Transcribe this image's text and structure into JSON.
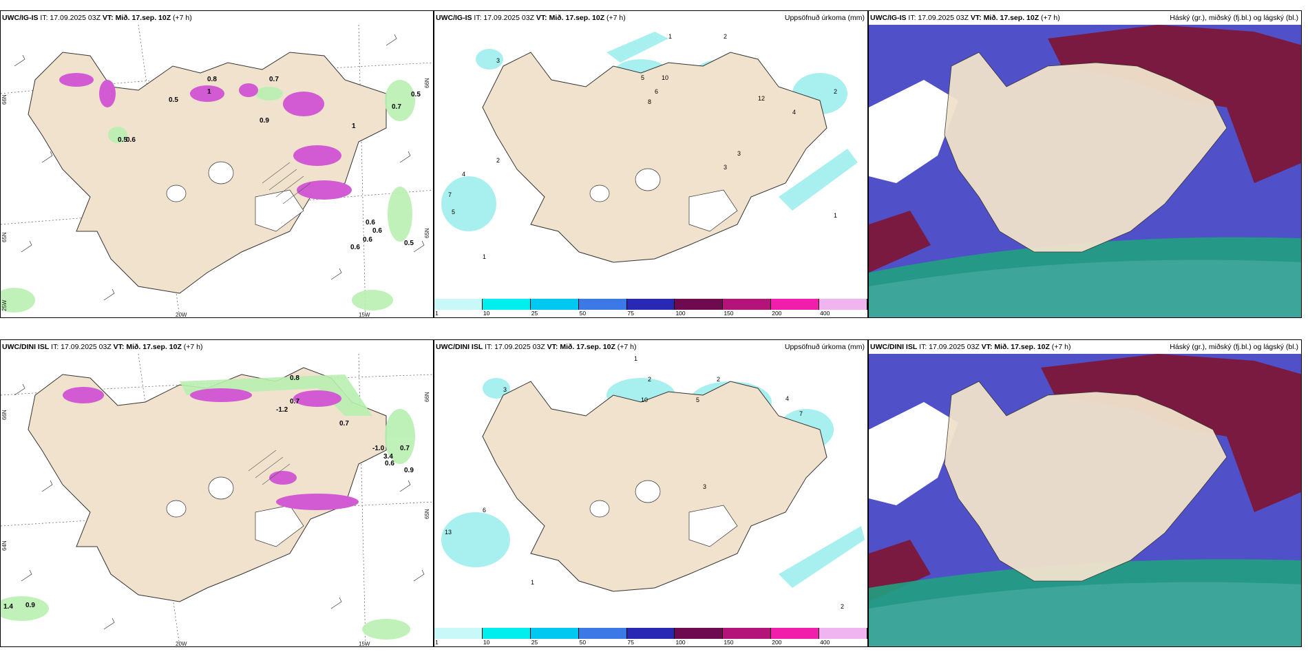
{
  "panels": {
    "r1c1": {
      "model": "UWC/IG-IS",
      "it": "IT: 17.09.2025 03Z",
      "vt": "VT: Mið. 17.sep. 10Z",
      "lead": "(+7 h)",
      "labels": [
        "0.5",
        "0.5",
        "0.7",
        "0.9",
        "0.7",
        "0.5",
        "0.6",
        "0.6",
        "0.6",
        "0.5",
        "0.6",
        "0.6",
        "0.8",
        "1",
        "1"
      ],
      "lat_labels": [
        "66N",
        "65N",
        "64N"
      ],
      "lon_labels": [
        "20W",
        "15W"
      ],
      "corner_label": "25W"
    },
    "r1c2": {
      "model": "UWC/IG-IS",
      "it": "IT: 17.09.2025 03Z",
      "vt": "VT: Mið. 17.sep. 10Z",
      "lead": "(+7 h)",
      "title_right": "Uppsöfnuð úrkoma (mm)",
      "labels": [
        "1",
        "2",
        "3",
        "4",
        "5",
        "6",
        "8",
        "10",
        "12",
        "2",
        "3",
        "1",
        "7",
        "5",
        "2",
        "3",
        "4",
        "1"
      ]
    },
    "r1c3": {
      "model": "UWC/IG-IS",
      "it": "IT: 17.09.2025 03Z",
      "vt": "VT: Mið. 17.sep. 10Z",
      "lead": "(+7 h)",
      "title_right": "Háský (gr.), miðský (fj.bl.) og lágský (bl.)"
    },
    "r2c1": {
      "model": "UWC/DINI ISL",
      "it": "IT: 17.09.2025 03Z",
      "vt": "VT: Mið. 17.sep. 10Z",
      "lead": "(+7 h)",
      "labels": [
        "0.8",
        "0.7",
        "0.7",
        "-1.2",
        "0.7",
        "0.6",
        "0.9",
        "1.4",
        "0.9",
        "-1.0",
        "3.4"
      ],
      "lat_labels": [
        "66N",
        "65N",
        "64N"
      ],
      "lon_labels": [
        "20W",
        "15W"
      ]
    },
    "r2c2": {
      "model": "UWC/DINI ISL",
      "it": "IT: 17.09.2025 03Z",
      "vt": "VT: Mið. 17.sep. 10Z",
      "lead": "(+7 h)",
      "title_right": "Uppsöfnuð úrkoma (mm)",
      "labels": [
        "1",
        "2",
        "3",
        "6",
        "10",
        "13",
        "2",
        "4",
        "5",
        "7",
        "3",
        "2",
        "1"
      ]
    },
    "r2c3": {
      "model": "UWC/DINI ISL",
      "it": "IT: 17.09.2025 03Z",
      "vt": "VT: Mið. 17.sep. 10Z",
      "lead": "(+7 h)",
      "title_right": "Háský (gr.), miðský (fj.bl.) og lágský (bl.)"
    }
  },
  "colorbar": {
    "ticks": [
      "1",
      "10",
      "25",
      "50",
      "75",
      "100",
      "150",
      "200",
      "400"
    ],
    "colors": [
      "#c8f8f8",
      "#00eeee",
      "#00c8f0",
      "#3c78e6",
      "#2828b4",
      "#6e0a50",
      "#b4147a",
      "#f01eaa",
      "#f0b4f0"
    ]
  },
  "colors": {
    "land": "#f0e2cc",
    "precip_green": "#b8f0b0",
    "precip_pink": "#d25ad2",
    "cloud_high": "#7a1a40",
    "cloud_mid": "#5050c8",
    "cloud_low": "#20a080",
    "sea_precip": "#a8f0f0"
  }
}
